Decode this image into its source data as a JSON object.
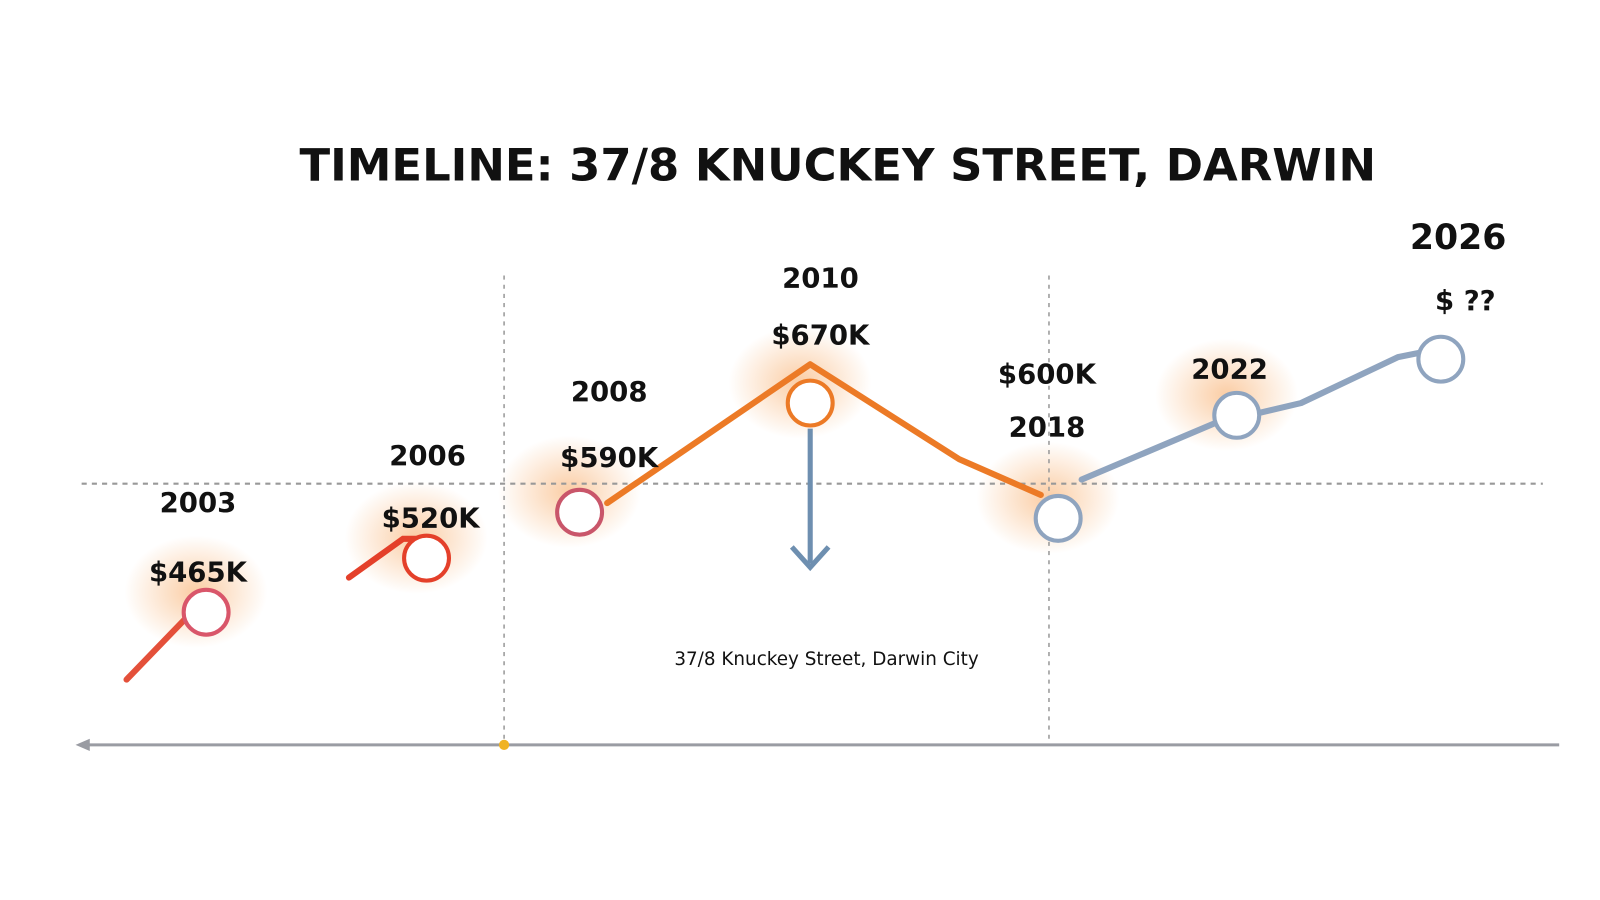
{
  "title": "TIMELINE: 37/8 KNUCKEY STREET, DARWIN",
  "caption": "37/8 Knuckey Street, Darwin City",
  "points": [
    {
      "year": "2003",
      "price": "$465K"
    },
    {
      "year": "2006",
      "price": "$520K"
    },
    {
      "year": "2008",
      "price": "$590K"
    },
    {
      "year": "2010",
      "price": "$670K"
    },
    {
      "year": "2018",
      "price": "$600K"
    },
    {
      "year": "2022"
    },
    {
      "year": "2026",
      "price": "$ ??"
    }
  ]
}
